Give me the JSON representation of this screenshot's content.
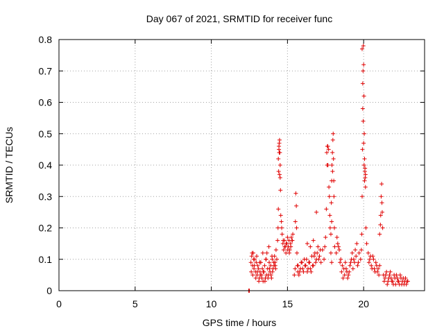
{
  "chart_data": {
    "type": "scatter",
    "title": "Day 067 of 2021, SRMTID for receiver func",
    "xlabel": "GPS time / hours",
    "ylabel": "SRMTID / TECUs",
    "xlim": [
      0,
      24
    ],
    "ylim": [
      0,
      0.8
    ],
    "xticks": [
      0,
      5,
      10,
      15,
      20
    ],
    "yticks": [
      0,
      0.1,
      0.2,
      0.3,
      0.4,
      0.5,
      0.6,
      0.7,
      0.8
    ],
    "xtick_labels": [
      "0",
      "5",
      "10",
      "15",
      "20"
    ],
    "ytick_labels": [
      "0",
      "0.1",
      "0.2",
      "0.3",
      "0.4",
      "0.5",
      "0.6",
      "0.7",
      "0.8"
    ],
    "grid": true,
    "series_color": "#e00000",
    "marker": "plus",
    "series": [
      {
        "name": "SRMTID",
        "x": [
          12.45,
          12.5,
          12.6,
          12.65,
          12.7,
          12.75,
          12.8,
          12.85,
          12.9,
          12.95,
          13.0,
          13.05,
          13.1,
          13.15,
          13.2,
          13.25,
          13.3,
          13.35,
          13.4,
          13.45,
          13.5,
          13.55,
          13.6,
          13.65,
          13.7,
          13.75,
          13.8,
          13.85,
          13.9,
          13.95,
          14.0,
          14.05,
          14.1,
          14.15,
          14.2,
          14.25,
          14.3,
          12.62,
          12.72,
          12.82,
          12.92,
          13.02,
          13.12,
          13.22,
          13.32,
          13.42,
          13.52,
          13.62,
          13.72,
          13.82,
          13.92,
          14.02,
          14.12,
          14.22,
          12.68,
          12.78,
          12.98,
          13.18,
          13.38,
          13.58,
          13.78,
          13.98,
          14.18,
          14.35,
          14.38,
          14.4,
          14.42,
          14.44,
          14.46,
          14.48,
          14.5,
          14.52,
          14.54,
          14.56,
          14.4,
          14.44,
          14.48,
          14.52,
          14.46,
          14.6,
          14.65,
          14.7,
          14.75,
          14.8,
          14.85,
          14.9,
          14.95,
          15.0,
          15.05,
          15.1,
          15.15,
          15.2,
          15.25,
          15.3,
          15.35,
          14.62,
          14.72,
          14.82,
          14.92,
          15.02,
          15.12,
          15.22,
          15.32,
          15.45,
          15.5,
          15.52,
          15.55,
          15.58,
          15.6,
          15.62,
          15.65,
          15.68,
          15.7,
          15.8,
          15.9,
          16.0,
          16.1,
          16.2,
          16.3,
          16.4,
          16.5,
          16.6,
          16.7,
          16.8,
          16.9,
          17.0,
          17.1,
          17.2,
          17.3,
          15.75,
          15.85,
          15.95,
          16.05,
          16.15,
          16.25,
          16.35,
          16.45,
          16.55,
          16.65,
          16.75,
          16.85,
          16.95,
          17.05,
          17.15,
          16.3,
          16.5,
          16.7,
          16.9,
          17.4,
          17.45,
          17.5,
          17.55,
          17.6,
          17.65,
          17.7,
          17.75,
          17.8,
          17.85,
          17.9,
          17.58,
          17.62,
          17.66,
          17.72,
          17.78,
          17.85,
          17.88,
          17.9,
          17.92,
          17.95,
          17.98,
          18.0,
          18.02,
          18.05,
          18.08,
          18.1,
          17.9,
          17.96,
          18.04,
          18.2,
          18.3,
          18.4,
          18.5,
          18.6,
          18.7,
          18.8,
          18.9,
          19.0,
          19.1,
          19.2,
          19.3,
          19.4,
          19.5,
          19.6,
          19.7,
          18.25,
          18.35,
          18.45,
          18.55,
          18.65,
          18.75,
          18.85,
          18.95,
          19.05,
          19.15,
          19.25,
          19.35,
          19.45,
          19.55,
          19.65,
          19.8,
          19.85,
          19.88,
          19.9,
          19.92,
          19.94,
          19.96,
          19.98,
          20.0,
          20.02,
          20.04,
          20.06,
          20.08,
          20.1,
          20.12,
          20.15,
          20.2,
          19.9,
          19.94,
          19.97,
          20.0,
          20.03,
          20.06,
          20.09,
          20.12,
          20.3,
          20.4,
          20.5,
          20.6,
          20.7,
          20.8,
          20.9,
          21.0,
          21.05,
          20.35,
          20.45,
          20.55,
          20.65,
          20.75,
          20.85,
          20.95,
          21.05,
          21.1,
          21.12,
          21.15,
          21.18,
          21.2,
          21.22,
          21.25,
          21.3,
          21.4,
          21.5,
          21.6,
          21.7,
          21.8,
          21.9,
          22.0,
          22.1,
          22.2,
          22.3,
          22.4,
          22.5,
          22.6,
          22.7,
          22.8,
          22.9,
          21.35,
          21.45,
          21.55,
          21.65,
          21.75,
          21.85,
          21.95,
          22.05,
          22.15,
          22.25,
          22.35,
          22.45,
          22.55,
          22.65,
          22.75,
          22.85
        ],
        "y": [
          0.0,
          0.0,
          0.09,
          0.11,
          0.08,
          0.12,
          0.07,
          0.1,
          0.06,
          0.09,
          0.05,
          0.08,
          0.07,
          0.04,
          0.06,
          0.09,
          0.05,
          0.07,
          0.03,
          0.06,
          0.08,
          0.04,
          0.1,
          0.12,
          0.07,
          0.05,
          0.09,
          0.06,
          0.08,
          0.04,
          0.1,
          0.07,
          0.09,
          0.11,
          0.08,
          0.13,
          0.1,
          0.06,
          0.05,
          0.08,
          0.04,
          0.06,
          0.03,
          0.05,
          0.04,
          0.06,
          0.03,
          0.05,
          0.04,
          0.07,
          0.05,
          0.06,
          0.08,
          0.07,
          0.12,
          0.1,
          0.11,
          0.09,
          0.12,
          0.1,
          0.14,
          0.11,
          0.09,
          0.16,
          0.2,
          0.26,
          0.38,
          0.45,
          0.47,
          0.48,
          0.44,
          0.36,
          0.32,
          0.24,
          0.42,
          0.46,
          0.37,
          0.4,
          0.44,
          0.22,
          0.18,
          0.15,
          0.13,
          0.16,
          0.14,
          0.12,
          0.15,
          0.17,
          0.14,
          0.16,
          0.13,
          0.15,
          0.17,
          0.16,
          0.18,
          0.2,
          0.16,
          0.14,
          0.15,
          0.13,
          0.12,
          0.14,
          0.16,
          0.05,
          0.07,
          0.22,
          0.31,
          0.27,
          0.2,
          0.12,
          0.08,
          0.06,
          0.08,
          0.06,
          0.09,
          0.07,
          0.1,
          0.08,
          0.06,
          0.09,
          0.07,
          0.11,
          0.08,
          0.12,
          0.1,
          0.14,
          0.11,
          0.09,
          0.13,
          0.05,
          0.07,
          0.09,
          0.06,
          0.08,
          0.1,
          0.07,
          0.09,
          0.06,
          0.08,
          0.11,
          0.09,
          0.12,
          0.1,
          0.13,
          0.15,
          0.14,
          0.16,
          0.25,
          0.1,
          0.14,
          0.17,
          0.26,
          0.4,
          0.46,
          0.45,
          0.3,
          0.2,
          0.12,
          0.09,
          0.44,
          0.46,
          0.4,
          0.33,
          0.24,
          0.18,
          0.28,
          0.35,
          0.4,
          0.44,
          0.48,
          0.5,
          0.42,
          0.3,
          0.2,
          0.14,
          0.22,
          0.38,
          0.35,
          0.12,
          0.15,
          0.13,
          0.1,
          0.08,
          0.07,
          0.09,
          0.06,
          0.05,
          0.08,
          0.1,
          0.07,
          0.09,
          0.11,
          0.08,
          0.12,
          0.17,
          0.14,
          0.09,
          0.06,
          0.04,
          0.05,
          0.07,
          0.04,
          0.06,
          0.09,
          0.12,
          0.1,
          0.13,
          0.15,
          0.09,
          0.1,
          0.13,
          0.18,
          0.3,
          0.45,
          0.58,
          0.7,
          0.78,
          0.72,
          0.62,
          0.5,
          0.42,
          0.38,
          0.36,
          0.33,
          0.2,
          0.15,
          0.77,
          0.66,
          0.54,
          0.47,
          0.4,
          0.35,
          0.39,
          0.37,
          0.12,
          0.1,
          0.08,
          0.11,
          0.07,
          0.09,
          0.06,
          0.05,
          0.08,
          0.09,
          0.11,
          0.07,
          0.1,
          0.06,
          0.08,
          0.07,
          0.18,
          0.21,
          0.24,
          0.3,
          0.34,
          0.28,
          0.25,
          0.2,
          0.05,
          0.04,
          0.06,
          0.03,
          0.05,
          0.04,
          0.03,
          0.05,
          0.02,
          0.04,
          0.03,
          0.05,
          0.02,
          0.04,
          0.03,
          0.02,
          0.03,
          0.03,
          0.05,
          0.02,
          0.04,
          0.06,
          0.03,
          0.02,
          0.04,
          0.05,
          0.03,
          0.02,
          0.04,
          0.03,
          0.02,
          0.04,
          0.03
        ]
      }
    ]
  }
}
